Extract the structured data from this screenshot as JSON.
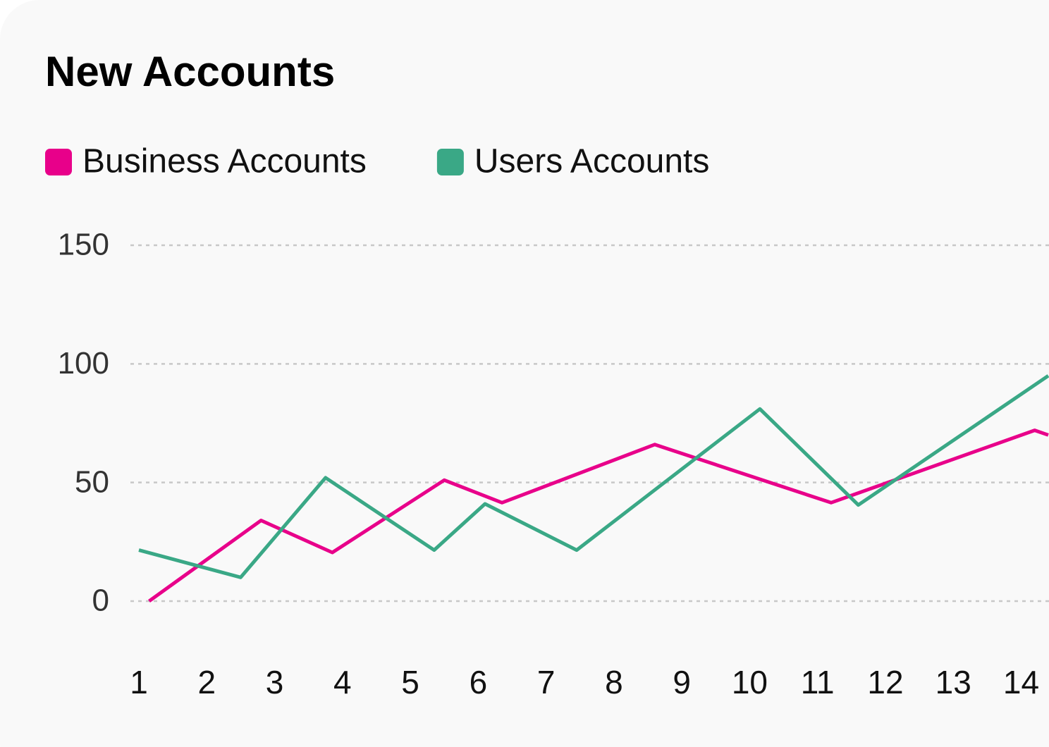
{
  "chart_data": {
    "type": "line",
    "title": "New Accounts",
    "legend": "top-left",
    "grid": true,
    "xlim": [
      0.875,
      14.4
    ],
    "xticks": [
      1,
      2,
      3,
      4,
      5,
      6,
      7,
      8,
      9,
      10,
      11,
      12,
      13,
      14
    ],
    "ylim": [
      0,
      150
    ],
    "yticks": [
      0,
      50,
      100,
      150
    ],
    "series": [
      {
        "name": "Business Accounts",
        "color": "#e8008a",
        "x": [
          1.15,
          2.8,
          3.85,
          5.5,
          6.35,
          8.6,
          11.2,
          14.2,
          14.4
        ],
        "values": [
          0,
          34,
          20.5,
          51,
          41.5,
          66,
          41.5,
          72,
          70
        ]
      },
      {
        "name": "Users Accounts",
        "color": "#3aa886",
        "x": [
          1.0,
          2.5,
          3.75,
          5.35,
          6.1,
          7.45,
          10.15,
          11.6,
          14.4
        ],
        "values": [
          21.5,
          10,
          52,
          21.5,
          41,
          21.5,
          81,
          40.5,
          95
        ]
      }
    ]
  }
}
